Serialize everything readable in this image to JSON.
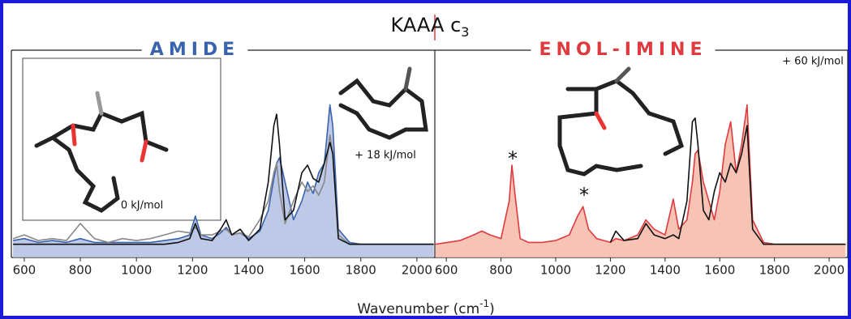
{
  "figure": {
    "title": "KAAA c",
    "title_sub": "3",
    "x_label": "Wavenumber (cm",
    "x_label_sup": "-1",
    "x_label_end": ")"
  },
  "chart_data": [
    {
      "type": "line",
      "title": "AMIDE",
      "title_color": "#3a63ad",
      "annotations": [
        "+ 18 kJ/mol",
        "0 kJ/mol"
      ],
      "x": [
        560,
        600,
        650,
        700,
        750,
        800,
        850,
        900,
        950,
        1000,
        1050,
        1100,
        1150,
        1190,
        1210,
        1230,
        1270,
        1300,
        1320,
        1340,
        1370,
        1400,
        1440,
        1470,
        1490,
        1500,
        1510,
        1530,
        1560,
        1590,
        1610,
        1630,
        1650,
        1670,
        1690,
        1700,
        1720,
        1760,
        1800,
        1900,
        2000,
        2060
      ],
      "xlim": [
        554,
        2064
      ],
      "xticks": [
        600,
        800,
        1000,
        1200,
        1400,
        1600,
        1800,
        2000
      ],
      "ylim": [
        0,
        1.1
      ],
      "series": [
        {
          "color": "#3a63ad",
          "fill": "#b3bfe3",
          "values": [
            0.09,
            0.1,
            0.08,
            0.09,
            0.08,
            0.1,
            0.08,
            0.08,
            0.08,
            0.08,
            0.08,
            0.09,
            0.1,
            0.12,
            0.22,
            0.12,
            0.1,
            0.13,
            0.16,
            0.12,
            0.13,
            0.1,
            0.14,
            0.25,
            0.42,
            0.5,
            0.53,
            0.4,
            0.2,
            0.3,
            0.4,
            0.34,
            0.45,
            0.5,
            0.81,
            0.7,
            0.15,
            0.08,
            0.07,
            0.07,
            0.07,
            0.07
          ]
        },
        {
          "color": "#888888",
          "values": [
            0.1,
            0.12,
            0.09,
            0.1,
            0.09,
            0.18,
            0.1,
            0.08,
            0.1,
            0.09,
            0.1,
            0.12,
            0.14,
            0.13,
            0.16,
            0.12,
            0.12,
            0.14,
            0.15,
            0.12,
            0.13,
            0.11,
            0.2,
            0.3,
            0.45,
            0.5,
            0.35,
            0.18,
            0.3,
            0.4,
            0.35,
            0.38,
            0.33,
            0.4,
            0.65,
            0.55,
            0.12,
            0.07,
            0.07,
            0.07,
            0.07,
            0.07
          ]
        },
        {
          "color": "#111111",
          "values": [
            0.07,
            0.07,
            0.07,
            0.07,
            0.07,
            0.07,
            0.07,
            0.07,
            0.07,
            0.07,
            0.07,
            0.07,
            0.08,
            0.1,
            0.18,
            0.1,
            0.09,
            0.15,
            0.2,
            0.12,
            0.15,
            0.09,
            0.15,
            0.4,
            0.7,
            0.76,
            0.6,
            0.2,
            0.25,
            0.45,
            0.49,
            0.42,
            0.4,
            0.5,
            0.61,
            0.55,
            0.1,
            0.07,
            0.07,
            0.07,
            0.07,
            0.07
          ]
        }
      ]
    },
    {
      "type": "line",
      "title": "ENOL-IMINE",
      "title_color": "#e0393e",
      "annotations": [
        "+ 60 kJ/mol",
        "*",
        "*"
      ],
      "x": [
        560,
        650,
        700,
        730,
        760,
        800,
        830,
        840,
        850,
        870,
        900,
        950,
        1000,
        1050,
        1080,
        1100,
        1120,
        1150,
        1200,
        1220,
        1250,
        1300,
        1330,
        1360,
        1400,
        1430,
        1450,
        1480,
        1500,
        1510,
        1520,
        1540,
        1560,
        1580,
        1600,
        1620,
        1640,
        1660,
        1680,
        1700,
        1720,
        1760,
        1800,
        1900,
        2060
      ],
      "xlim": [
        561,
        2068
      ],
      "xticks": [
        600,
        800,
        1000,
        1200,
        1400,
        1600,
        1800,
        2000
      ],
      "ylim": [
        0,
        1.1
      ],
      "series": [
        {
          "color": "#e0393e",
          "fill": "#f6b8a8",
          "values": [
            0.07,
            0.09,
            0.12,
            0.14,
            0.12,
            0.1,
            0.3,
            0.49,
            0.35,
            0.1,
            0.08,
            0.08,
            0.09,
            0.12,
            0.22,
            0.27,
            0.15,
            0.1,
            0.08,
            0.1,
            0.09,
            0.12,
            0.2,
            0.15,
            0.12,
            0.31,
            0.15,
            0.2,
            0.4,
            0.55,
            0.57,
            0.4,
            0.3,
            0.2,
            0.35,
            0.6,
            0.72,
            0.45,
            0.6,
            0.81,
            0.2,
            0.08,
            0.07,
            0.07,
            0.07
          ]
        },
        {
          "color": "#111111",
          "values": [
            null,
            null,
            null,
            null,
            null,
            null,
            null,
            null,
            null,
            null,
            null,
            null,
            null,
            null,
            null,
            null,
            null,
            null,
            0.08,
            0.14,
            0.09,
            0.1,
            0.18,
            0.12,
            0.1,
            0.12,
            0.1,
            0.3,
            0.72,
            0.74,
            0.6,
            0.25,
            0.2,
            0.35,
            0.45,
            0.4,
            0.5,
            0.45,
            0.55,
            0.7,
            0.15,
            0.07,
            0.07,
            0.07,
            0.07
          ]
        }
      ]
    }
  ]
}
